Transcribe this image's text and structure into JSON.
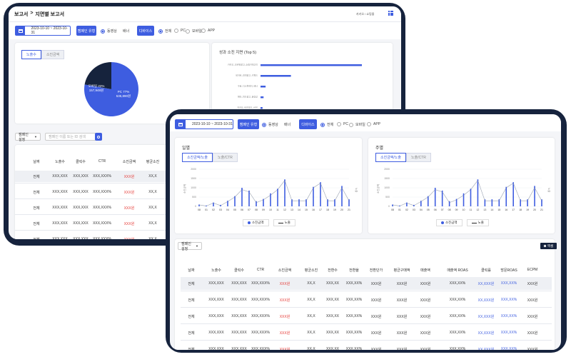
{
  "back": {
    "breadcrumb_root": "보고서",
    "breadcrumb_sep": ">",
    "breadcrumb_current": "지면별 보고서",
    "user_label": "카카오 / 쇼핑몰",
    "date_range": "2023-10-10 ~ 2023-10-31",
    "filter_button": "캠페인 유형",
    "radio_all": "동영상",
    "radio_other": "배너",
    "device_button": "디바이스",
    "device_options": [
      "전체",
      "PC",
      "모바일",
      "APP"
    ],
    "pie_tabs": [
      "노출수",
      "소진금액"
    ],
    "pie_label_a": "모바일 22%",
    "pie_value_a": "157,948원",
    "pie_label_b": "PC 77%",
    "pie_value_b": "535,890원",
    "bar_title": "성과 소진 지면 (Top 5)",
    "bar_labels": [
      "카카오_모바일광고_쇼핑카테고리",
      "네이버_검색광고_키워드",
      "구글_디스플레이_배너",
      "메타_피드광고_동영상",
      "카카오_비즈보드_APP"
    ],
    "filter_select": "캠페인 설정",
    "search_placeholder": "캠페인 이름 또는 ID 검색",
    "columns": [
      "날짜",
      "노출수",
      "클릭수",
      "CTR",
      "소진금액",
      "평균소진",
      "전환"
    ],
    "row_label": "전체",
    "cells": [
      "XXX,XXX",
      "XXX,XXX",
      "XXX,XXX%",
      "XXX원",
      "XX,X",
      "XXX,XX"
    ]
  },
  "front": {
    "date_range": "2023-10-10 ~ 2023-10-31",
    "filter_button": "캠페인 유형",
    "radio_all": "동영상",
    "radio_other": "배너",
    "device_button": "디바이스",
    "device_options": [
      "전체",
      "PC",
      "모바일",
      "APP"
    ],
    "daily_title": "일별",
    "weekly_title": "주별",
    "chart_tabs": [
      "소진금액/노출",
      "노출/CTR"
    ],
    "legend": [
      "소진금액",
      "노출"
    ],
    "ylabel_left": "소진금액",
    "ylabel_right": "노출",
    "filter_select": "캠페인 설정",
    "excel_button": "엑셀",
    "columns": [
      "날짜",
      "노출수",
      "클릭수",
      "CTR",
      "소진금액",
      "평균소진",
      "전환수",
      "전환율",
      "전환단가",
      "평균구매액",
      "매출액",
      "매출액 ROAS",
      "클릭률",
      "방문ROAS",
      "ECPM"
    ],
    "row_label": "전체",
    "cells": [
      "XXX,XXX",
      "XXX,XXX",
      "XXX,XXX%",
      "XXX원",
      "XX,X",
      "XXX,XX",
      "XXX,XX%",
      "XXX원",
      "XXX원",
      "XXX원",
      "XXX,XX%",
      "XX,XXX원",
      "XXX,XX%",
      "XXX원"
    ]
  },
  "chart_data": [
    {
      "type": "bar",
      "title": "일별",
      "x": [
        "08",
        "01",
        "02",
        "03",
        "04",
        "05",
        "06",
        "07",
        "08",
        "09",
        "10",
        "11",
        "12",
        "13",
        "14",
        "15",
        "16",
        "17",
        "18",
        "19",
        "20",
        "21"
      ],
      "series": [
        {
          "name": "소진금액",
          "values": [
            80,
            40,
            200,
            80,
            300,
            550,
            1000,
            850,
            280,
            400,
            700,
            950,
            1450,
            380,
            380,
            380,
            1050,
            1300,
            380,
            380,
            1100,
            380
          ]
        },
        {
          "name": "노출",
          "values": [
            80,
            20,
            180,
            40,
            260,
            500,
            900,
            780,
            200,
            350,
            600,
            900,
            1400,
            300,
            300,
            300,
            1000,
            1250,
            300,
            300,
            1000,
            300
          ]
        }
      ],
      "ylim": [
        0,
        2000
      ],
      "yticks": [
        0,
        500,
        1000,
        1500,
        2000
      ]
    },
    {
      "type": "bar",
      "title": "주별",
      "x": [
        "08",
        "01",
        "02",
        "03",
        "04",
        "05",
        "06",
        "07",
        "08",
        "09",
        "10",
        "11",
        "12",
        "13",
        "14",
        "15",
        "16",
        "17",
        "18",
        "19",
        "20",
        "21"
      ],
      "series": [
        {
          "name": "소진금액",
          "values": [
            80,
            40,
            200,
            80,
            300,
            550,
            1000,
            850,
            280,
            400,
            700,
            950,
            1450,
            380,
            380,
            380,
            1050,
            1300,
            380,
            380,
            1100,
            380
          ]
        },
        {
          "name": "노출",
          "values": [
            80,
            20,
            180,
            40,
            260,
            500,
            900,
            780,
            200,
            350,
            600,
            900,
            1400,
            300,
            300,
            300,
            1000,
            1250,
            300,
            300,
            1000,
            300
          ]
        }
      ],
      "ylim": [
        0,
        2000
      ],
      "yticks": [
        0,
        500,
        1000,
        1500,
        2000
      ]
    },
    {
      "type": "pie",
      "labels": [
        "모바일",
        "PC"
      ],
      "values": [
        22,
        77
      ]
    },
    {
      "type": "bar",
      "title": "성과 소진 지면 (Top 5)",
      "categories": [
        "카카오_모바일광고_쇼핑카테고리",
        "네이버_검색광고_키워드",
        "구글_디스플레이_배너",
        "메타_피드광고_동영상",
        "카카오_비즈보드_APP"
      ],
      "values": [
        100,
        30,
        5,
        3,
        2
      ]
    }
  ]
}
